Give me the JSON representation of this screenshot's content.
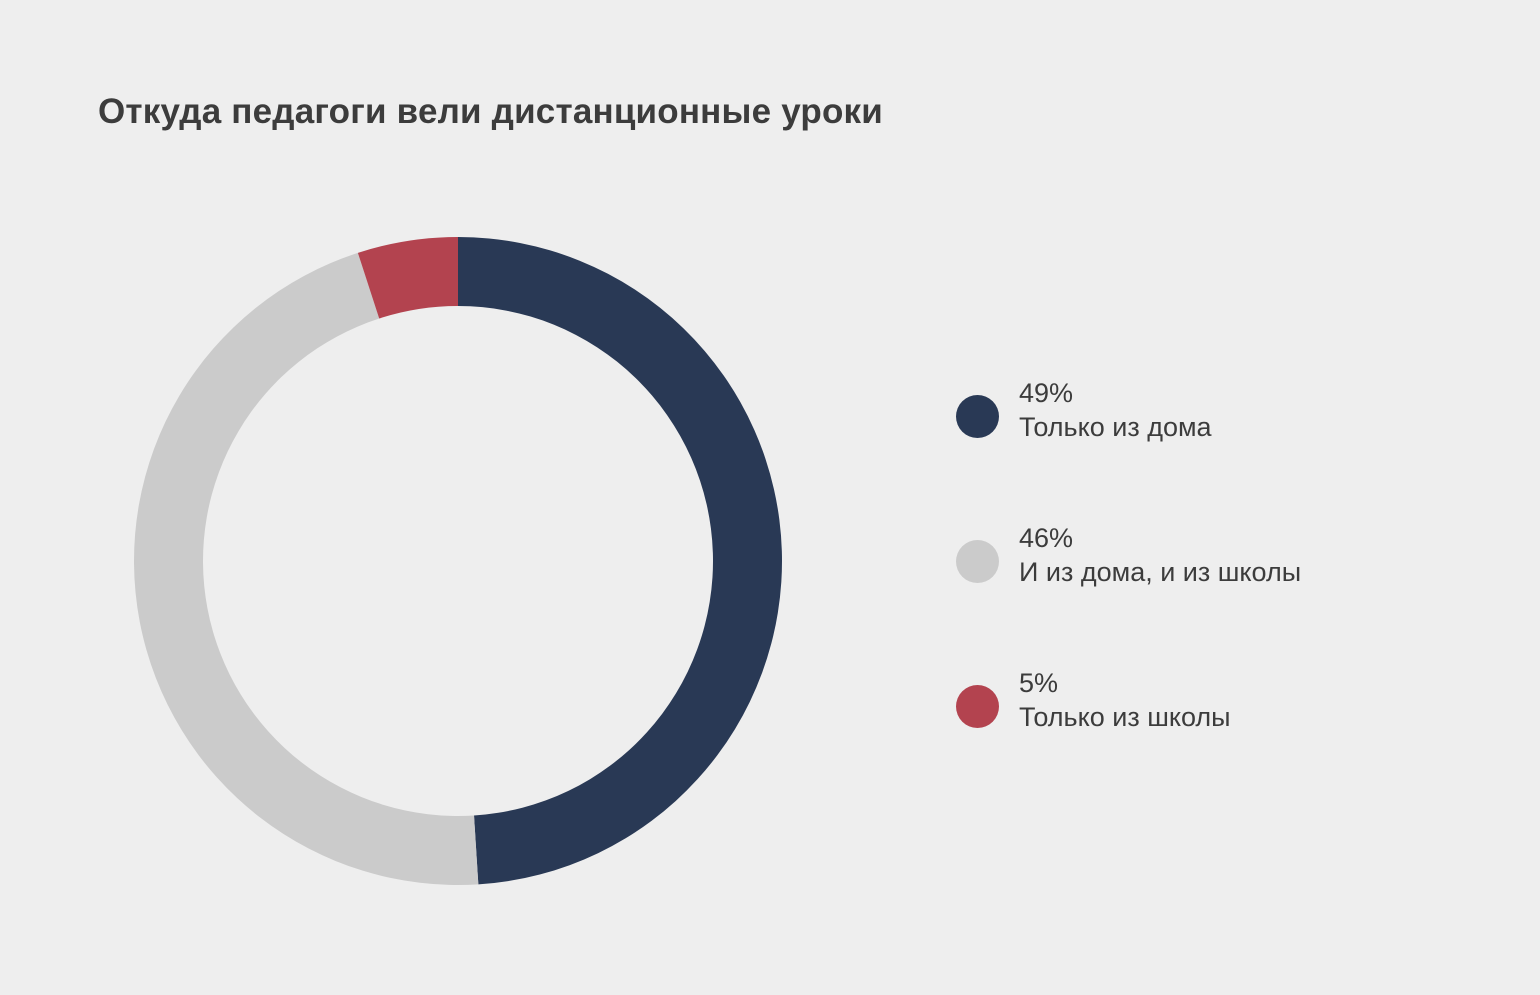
{
  "chart_data": {
    "type": "pie",
    "title": "Откуда педагоги вели дистанционные уроки",
    "categories": [
      "Только из дома",
      "И из дома, и из школы",
      "Только из школы"
    ],
    "values": [
      49,
      46,
      5
    ],
    "value_labels": [
      "49%",
      "46%",
      "5%"
    ],
    "colors": [
      "#293955",
      "#cbcbcb",
      "#b3434f"
    ],
    "style": "donut",
    "legend": "right"
  }
}
